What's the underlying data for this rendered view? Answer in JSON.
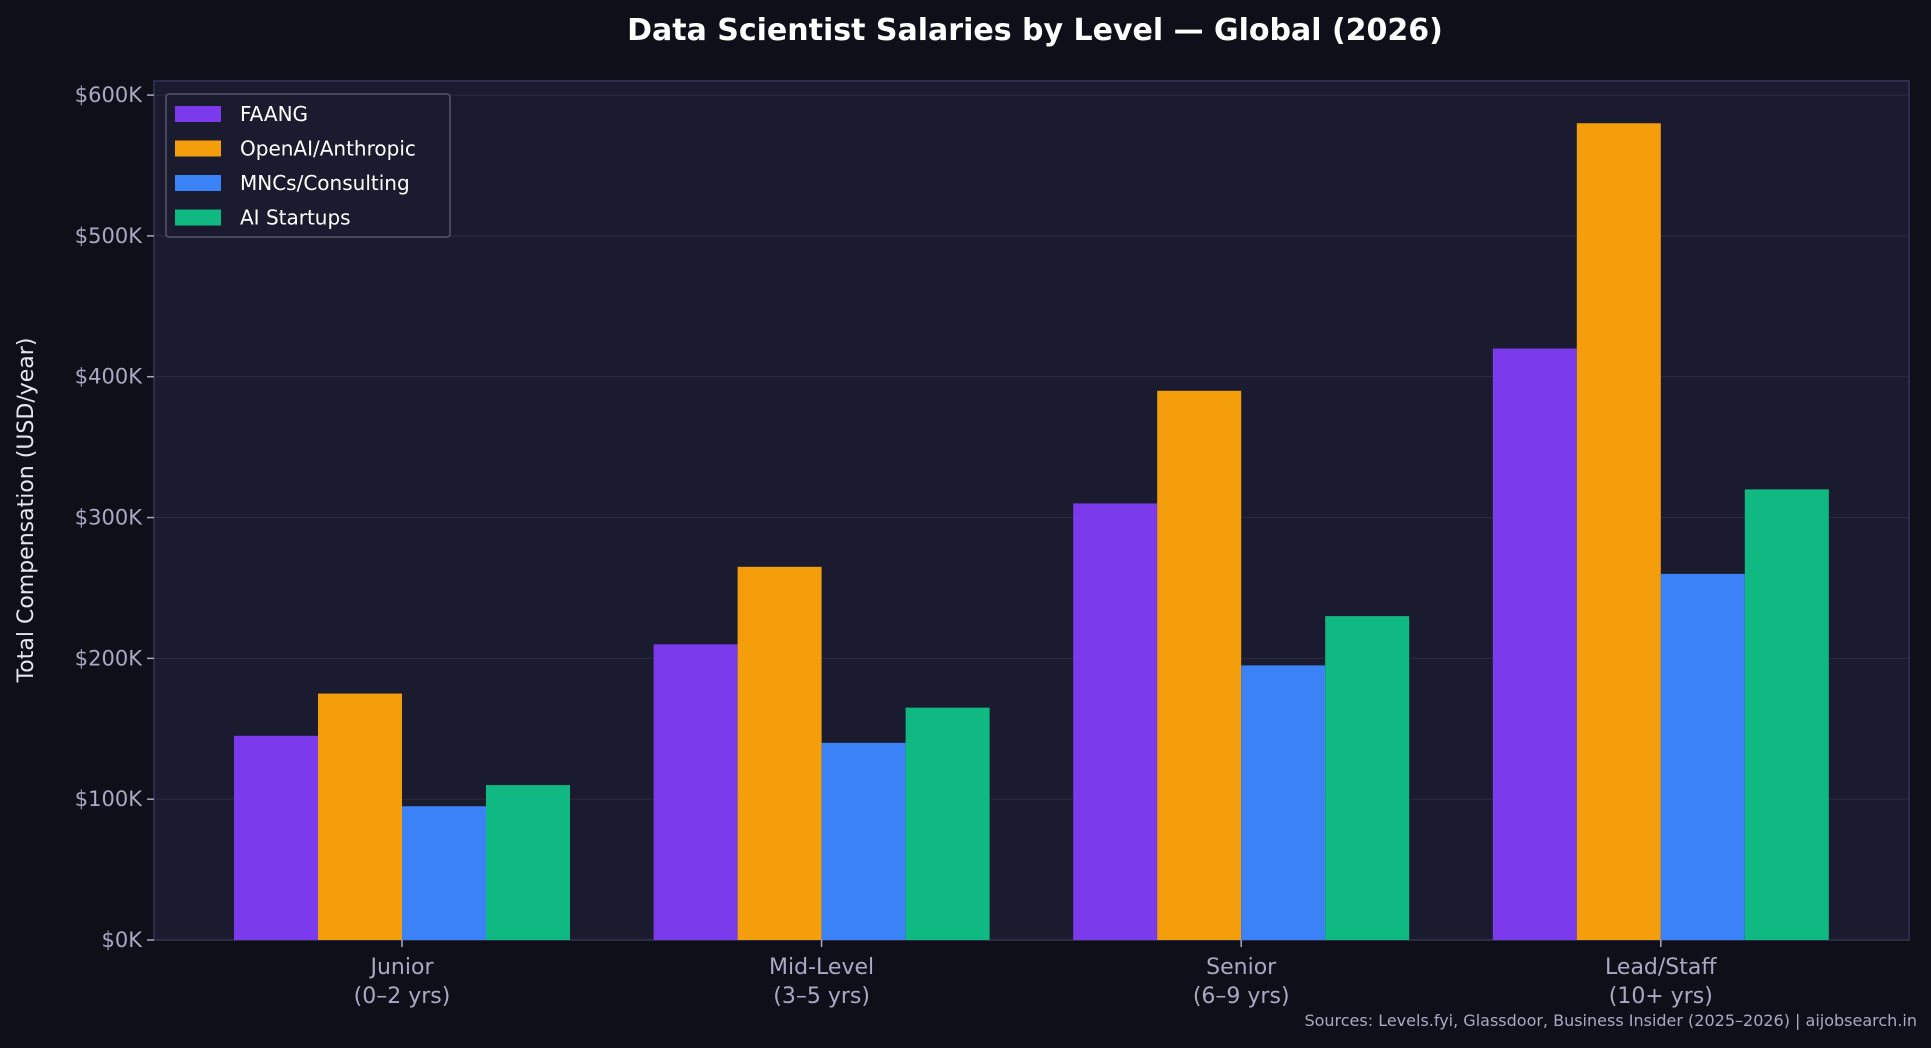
{
  "chart_data": {
    "type": "bar",
    "title": "Data Scientist Salaries by Level — Global (2026)",
    "xlabel": "",
    "ylabel": "Total Compensation (USD/year)",
    "categories": [
      [
        "Junior",
        "(0–2 yrs)"
      ],
      [
        "Mid-Level",
        "(3–5 yrs)"
      ],
      [
        "Senior",
        "(6–9 yrs)"
      ],
      [
        "Lead/Staff",
        "(10+ yrs)"
      ]
    ],
    "series": [
      {
        "name": "FAANG",
        "color": "#7c3aed",
        "values": [
          145,
          210,
          310,
          420
        ]
      },
      {
        "name": "OpenAI/Anthropic",
        "color": "#f59e0b",
        "values": [
          175,
          265,
          390,
          580
        ]
      },
      {
        "name": "MNCs/Consulting",
        "color": "#3b82f6",
        "values": [
          95,
          140,
          195,
          260
        ]
      },
      {
        "name": "AI Startups",
        "color": "#10b981",
        "values": [
          110,
          165,
          230,
          320
        ]
      }
    ],
    "unit": "thousands USD",
    "ylim": [
      0,
      610
    ],
    "yticks": [
      0,
      100,
      200,
      300,
      400,
      500,
      600
    ],
    "ytick_labels": [
      "$0K",
      "$100K",
      "$200K",
      "$300K",
      "$400K",
      "$500K",
      "$600K"
    ],
    "grid": true,
    "legend_position": "top-left",
    "source_note": "Sources: Levels.fyi, Glassdoor, Business Insider (2025–2026) | aijobsearch.in",
    "colors": {
      "background": "#0f0f19",
      "plot_background": "#1a1b2e",
      "text": "#a9a9c4",
      "title": "#ffffff"
    }
  }
}
